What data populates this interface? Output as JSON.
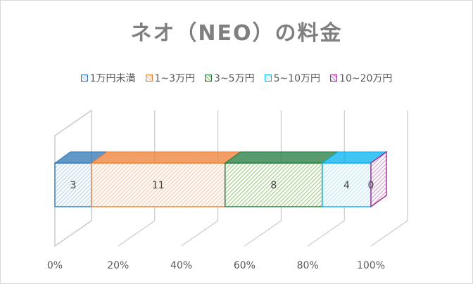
{
  "chart_data": {
    "type": "bar",
    "orientation": "horizontal",
    "stacking": "percent",
    "three_d": true,
    "title": "ネオ（NEO）の料金",
    "series": [
      {
        "name": "1万円未満",
        "values": [
          3
        ],
        "color": "#2e75b6",
        "fill": "#bdd7ee"
      },
      {
        "name": "1~3万円",
        "values": [
          11
        ],
        "color": "#ed7d31",
        "fill": "#f8cbad"
      },
      {
        "name": "3~5万円",
        "values": [
          8
        ],
        "color": "#1f7a3d",
        "fill": "#a9d18e"
      },
      {
        "name": "5~10万円",
        "values": [
          4
        ],
        "color": "#00b0f0",
        "fill": "#bfe9f8"
      },
      {
        "name": "10~20万円",
        "values": [
          0
        ],
        "color": "#a02b93",
        "fill": "#d9a7d3"
      }
    ],
    "x_ticks": [
      "0%",
      "20%",
      "40%",
      "60%",
      "80%",
      "100%"
    ],
    "xlim": [
      0,
      100
    ],
    "legend_position": "top",
    "grid": true
  }
}
